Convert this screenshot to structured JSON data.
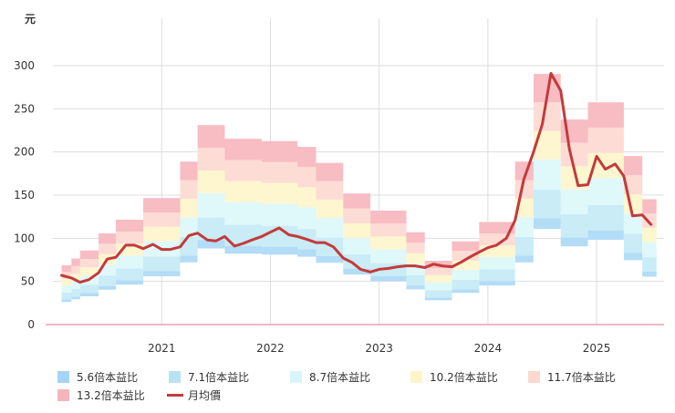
{
  "chart_data": {
    "type": "area",
    "unit_label": "元",
    "ylim": [
      0,
      300
    ],
    "yticks": [
      0,
      50,
      100,
      150,
      200,
      250,
      300
    ],
    "xticks": [
      {
        "label": "2021",
        "x": 2021.0
      },
      {
        "label": "2022",
        "x": 2022.0
      },
      {
        "label": "2023",
        "x": 2023.0
      },
      {
        "label": "2024",
        "x": 2024.0
      },
      {
        "label": "2025",
        "x": 2025.0
      }
    ],
    "x_range": [
      2020.0,
      2025.62
    ],
    "colors": {
      "band1": "#b3dcf7",
      "band2": "#c9ecf6",
      "band3": "#dff8fa",
      "band4": "#fdf6cf",
      "band5": "#fcdcd4",
      "band6": "#f8bcc3",
      "price_line": "#c23b3b",
      "grid": "#dddddd",
      "axis": "#e9a0b0"
    },
    "legend": [
      {
        "label": "5.6倍本益比",
        "color": "#a6d4f7",
        "kind": "box"
      },
      {
        "label": "7.1倍本益比",
        "color": "#b8e2f3",
        "kind": "box"
      },
      {
        "label": "8.7倍本益比",
        "color": "#d8f6f8",
        "kind": "box"
      },
      {
        "label": "10.2倍本益比",
        "color": "#fdf5c8",
        "kind": "box"
      },
      {
        "label": "11.7倍本益比",
        "color": "#fcd8cf",
        "kind": "box"
      },
      {
        "label": "13.2倍本益比",
        "color": "#f6b5bd",
        "kind": "box"
      },
      {
        "label": "月均價",
        "color": "#c23b3b",
        "kind": "line"
      }
    ],
    "eps_segments": [
      {
        "x0": 2020.08,
        "x1": 2020.17,
        "eps": 5.2
      },
      {
        "x0": 2020.17,
        "x1": 2020.25,
        "eps": 5.8
      },
      {
        "x0": 2020.25,
        "x1": 2020.42,
        "eps": 6.5
      },
      {
        "x0": 2020.42,
        "x1": 2020.58,
        "eps": 8.0
      },
      {
        "x0": 2020.58,
        "x1": 2020.83,
        "eps": 9.2
      },
      {
        "x0": 2020.83,
        "x1": 2021.17,
        "eps": 11.1
      },
      {
        "x0": 2021.17,
        "x1": 2021.33,
        "eps": 14.3
      },
      {
        "x0": 2021.33,
        "x1": 2021.58,
        "eps": 17.5
      },
      {
        "x0": 2021.58,
        "x1": 2021.92,
        "eps": 16.3
      },
      {
        "x0": 2021.92,
        "x1": 2022.25,
        "eps": 16.1
      },
      {
        "x0": 2022.25,
        "x1": 2022.42,
        "eps": 15.6
      },
      {
        "x0": 2022.42,
        "x1": 2022.67,
        "eps": 14.2
      },
      {
        "x0": 2022.67,
        "x1": 2022.92,
        "eps": 11.5
      },
      {
        "x0": 2022.92,
        "x1": 2023.25,
        "eps": 10.0
      },
      {
        "x0": 2023.25,
        "x1": 2023.42,
        "eps": 8.1
      },
      {
        "x0": 2023.42,
        "x1": 2023.67,
        "eps": 5.6
      },
      {
        "x0": 2023.67,
        "x1": 2023.92,
        "eps": 7.3
      },
      {
        "x0": 2023.92,
        "x1": 2024.25,
        "eps": 9.0
      },
      {
        "x0": 2024.25,
        "x1": 2024.42,
        "eps": 14.3
      },
      {
        "x0": 2024.42,
        "x1": 2024.67,
        "eps": 22.0
      },
      {
        "x0": 2024.67,
        "x1": 2024.92,
        "eps": 18.0
      },
      {
        "x0": 2024.92,
        "x1": 2025.25,
        "eps": 19.5
      },
      {
        "x0": 2025.25,
        "x1": 2025.42,
        "eps": 14.8
      },
      {
        "x0": 2025.42,
        "x1": 2025.55,
        "eps": 11.0
      }
    ],
    "pe_multiples": [
      5.6,
      7.1,
      8.7,
      10.2,
      11.7,
      13.2
    ],
    "monthly_price": {
      "name": "月均價",
      "x": [
        2020.08,
        2020.17,
        2020.25,
        2020.33,
        2020.42,
        2020.5,
        2020.58,
        2020.67,
        2020.75,
        2020.83,
        2020.92,
        2021.0,
        2021.08,
        2021.17,
        2021.25,
        2021.33,
        2021.42,
        2021.5,
        2021.58,
        2021.67,
        2021.75,
        2021.83,
        2021.92,
        2022.0,
        2022.08,
        2022.17,
        2022.25,
        2022.33,
        2022.42,
        2022.5,
        2022.58,
        2022.67,
        2022.75,
        2022.83,
        2022.92,
        2023.0,
        2023.08,
        2023.17,
        2023.25,
        2023.33,
        2023.42,
        2023.5,
        2023.58,
        2023.67,
        2023.75,
        2023.83,
        2023.92,
        2024.0,
        2024.08,
        2024.17,
        2024.25,
        2024.33,
        2024.42,
        2024.5,
        2024.58,
        2024.67,
        2024.75,
        2024.83,
        2024.92,
        2025.0,
        2025.08,
        2025.17,
        2025.25,
        2025.33,
        2025.42,
        2025.5
      ],
      "values": [
        57,
        54,
        49,
        52,
        60,
        76,
        78,
        92,
        92,
        88,
        93,
        87,
        87,
        90,
        103,
        106,
        98,
        97,
        102,
        91,
        94,
        98,
        102,
        107,
        112,
        104,
        102,
        99,
        95,
        95,
        90,
        77,
        72,
        64,
        61,
        64,
        65,
        67,
        68,
        68,
        66,
        70,
        68,
        67,
        72,
        78,
        84,
        89,
        92,
        100,
        121,
        168,
        200,
        232,
        291,
        271,
        203,
        161,
        162,
        195,
        180,
        186,
        172,
        126,
        127,
        116
      ]
    }
  }
}
